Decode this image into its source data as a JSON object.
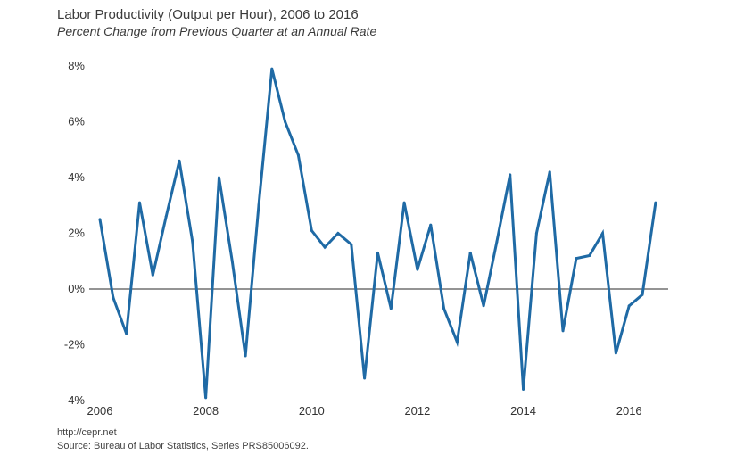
{
  "title": "Labor Productivity (Output per Hour), 2006 to 2016",
  "subtitle": "Percent Change from Previous Quarter at an Annual Rate",
  "footer": {
    "url": "http://cepr.net",
    "source": "Source: Bureau of Labor Statistics, Series PRS85006092."
  },
  "colors": {
    "line": "#1f6aa5",
    "zero_line": "#555555"
  },
  "chart_data": {
    "type": "line",
    "title": "Labor Productivity (Output per Hour), 2006 to 2016",
    "subtitle": "Percent Change from Previous Quarter at an Annual Rate",
    "xlabel": "",
    "ylabel": "",
    "x": [
      "2006 Q1",
      "2006 Q2",
      "2006 Q3",
      "2006 Q4",
      "2007 Q1",
      "2007 Q2",
      "2007 Q3",
      "2007 Q4",
      "2008 Q1",
      "2008 Q2",
      "2008 Q3",
      "2008 Q4",
      "2009 Q1",
      "2009 Q2",
      "2009 Q3",
      "2009 Q4",
      "2010 Q1",
      "2010 Q2",
      "2010 Q3",
      "2010 Q4",
      "2011 Q1",
      "2011 Q2",
      "2011 Q3",
      "2011 Q4",
      "2012 Q1",
      "2012 Q2",
      "2012 Q3",
      "2012 Q4",
      "2013 Q1",
      "2013 Q2",
      "2013 Q3",
      "2013 Q4",
      "2014 Q1",
      "2014 Q2",
      "2014 Q3",
      "2014 Q4",
      "2015 Q1",
      "2015 Q2",
      "2015 Q3",
      "2015 Q4",
      "2016 Q1",
      "2016 Q2",
      "2016 Q3"
    ],
    "series": [
      {
        "values": [
          2.5,
          -0.3,
          -1.6,
          3.1,
          0.5,
          2.6,
          4.6,
          1.7,
          -3.9,
          4.0,
          1.0,
          -2.4,
          3.0,
          7.9,
          6.0,
          4.8,
          2.1,
          1.5,
          2.0,
          1.6,
          -3.2,
          1.3,
          -0.7,
          3.1,
          0.7,
          2.3,
          -0.7,
          -1.9,
          1.3,
          -0.6,
          1.7,
          4.1,
          -3.6,
          2.0,
          4.2,
          -1.5,
          1.1,
          1.2,
          2.0,
          -2.3,
          -0.6,
          -0.2,
          3.1
        ]
      }
    ],
    "xticks": [
      "2006",
      "2008",
      "2010",
      "2012",
      "2014",
      "2016"
    ],
    "yticks": [
      "8%",
      "6%",
      "4%",
      "2%",
      "0%",
      "-2%",
      "-4%"
    ],
    "ylim": [
      -4,
      8
    ],
    "grid": false,
    "zero_line": true
  }
}
